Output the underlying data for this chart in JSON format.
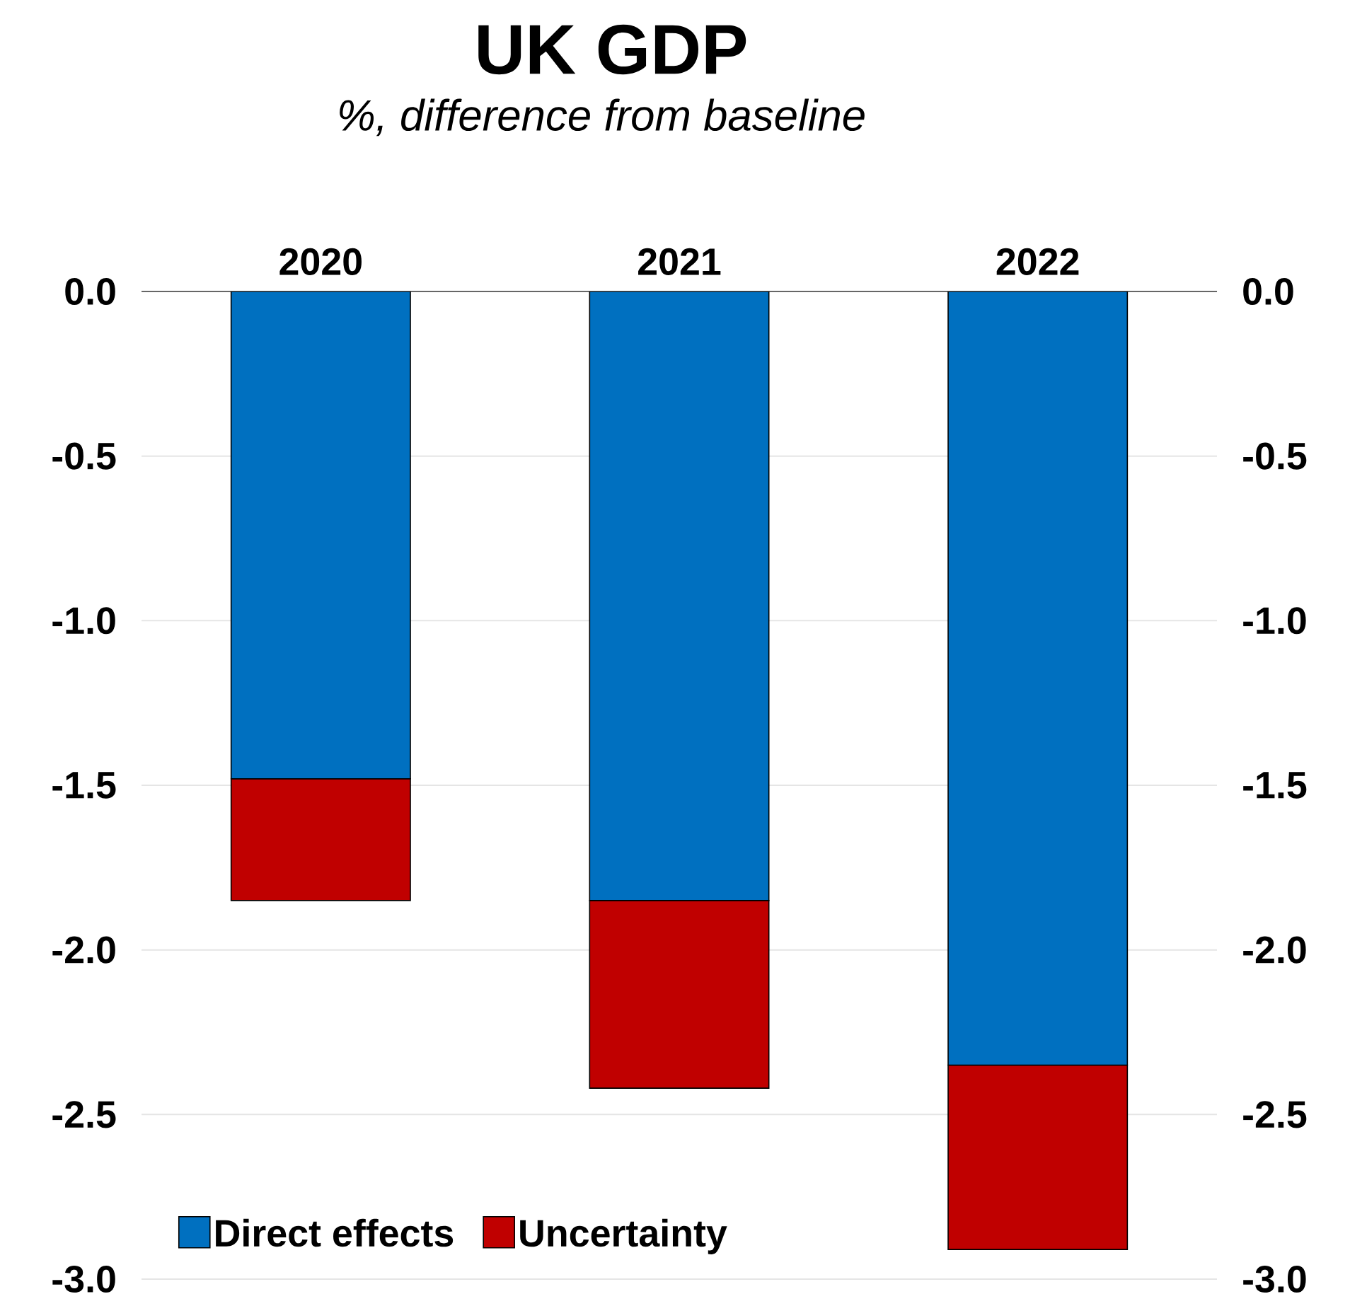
{
  "chart_data": {
    "type": "bar",
    "title": "UK GDP",
    "subtitle": "%, difference from baseline",
    "categories": [
      "2020",
      "2021",
      "2022"
    ],
    "series": [
      {
        "name": "Direct effects",
        "color": "#0070c0",
        "values": [
          -1.48,
          -1.85,
          -2.35
        ]
      },
      {
        "name": "Uncertainty",
        "color": "#c00000",
        "values": [
          -0.37,
          -0.57,
          -0.56
        ]
      }
    ],
    "stacked": true,
    "ylim": [
      -3.0,
      0.0
    ],
    "yticks": [
      {
        "value": 0.0,
        "label": "0.0"
      },
      {
        "value": -0.5,
        "label": "-0.5"
      },
      {
        "value": -1.0,
        "label": "-1.0"
      },
      {
        "value": -1.5,
        "label": "-1.5"
      },
      {
        "value": -2.0,
        "label": "-2.0"
      },
      {
        "value": -2.5,
        "label": "-2.5"
      },
      {
        "value": -3.0,
        "label": "-3.0"
      }
    ],
    "y2lim": [
      -3.0,
      0.0
    ],
    "y2ticks": [
      {
        "value": 0.0,
        "label": "0.0"
      },
      {
        "value": -0.5,
        "label": "-0.5"
      },
      {
        "value": -1.0,
        "label": "-1.0"
      },
      {
        "value": -1.5,
        "label": "-1.5"
      },
      {
        "value": -2.0,
        "label": "-2.0"
      },
      {
        "value": -2.5,
        "label": "-2.5"
      },
      {
        "value": -3.0,
        "label": "-3.0"
      }
    ],
    "grid": "y",
    "legend": "bottom left"
  }
}
